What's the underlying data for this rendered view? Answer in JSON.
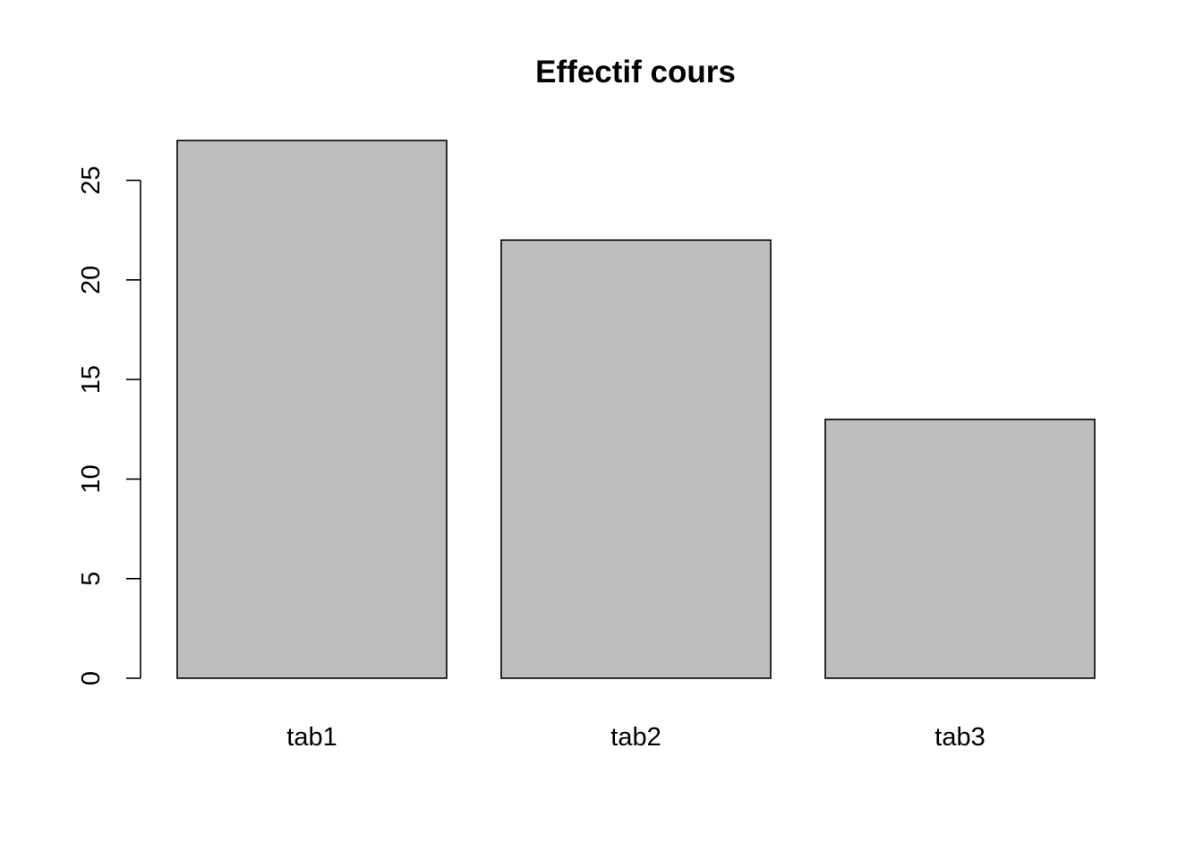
{
  "chart_data": {
    "type": "bar",
    "title": "Effectif cours",
    "xlabel": "",
    "ylabel": "",
    "categories": [
      "tab1",
      "tab2",
      "tab3"
    ],
    "values": [
      27,
      22,
      13
    ],
    "ylim": [
      0,
      27
    ],
    "yticks": [
      0,
      5,
      10,
      15,
      20,
      25
    ],
    "bar_color": "#bebebe",
    "bar_border_color": "#000000",
    "grid": false,
    "legend": "none"
  }
}
